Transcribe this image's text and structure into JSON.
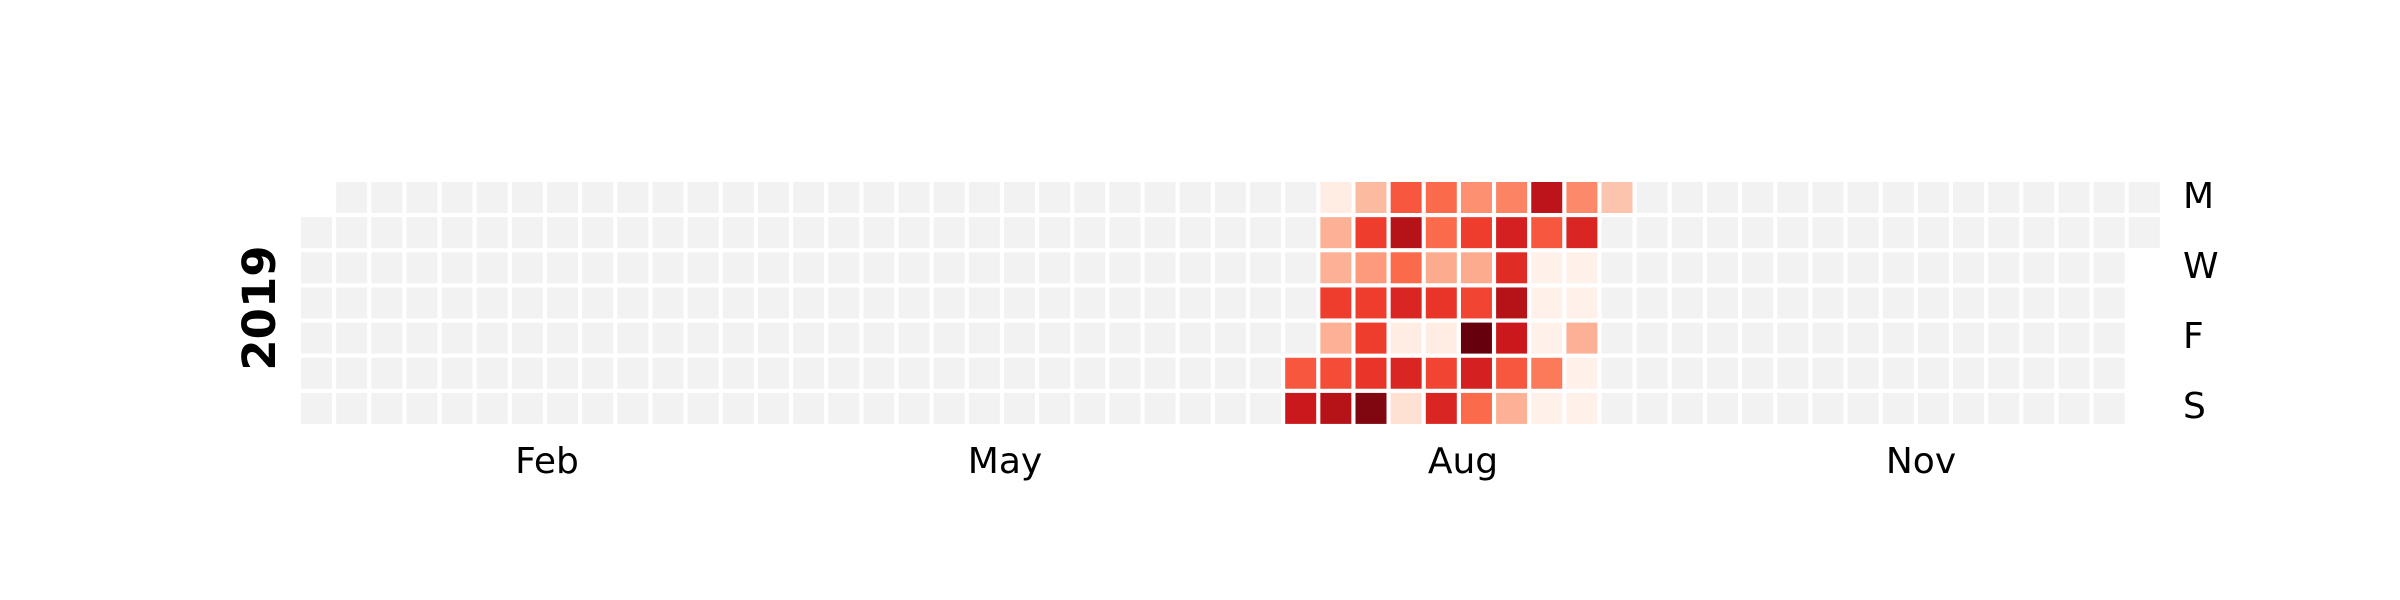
{
  "chart_data": {
    "type": "heatmap",
    "year": "2019",
    "x_ticks": [
      "Feb",
      "May",
      "Aug",
      "Nov"
    ],
    "y_ticks": [
      "M",
      "W",
      "F",
      "S"
    ],
    "empty_color": "#f2f2f2",
    "colormap": "Reds",
    "colormap_stops": [
      "#fff5f0",
      "#fee0d2",
      "#fcbba1",
      "#fc9272",
      "#fb6a4a",
      "#ef3b2c",
      "#cb181d",
      "#a50f15",
      "#67000d"
    ],
    "value_range": [
      0,
      1
    ],
    "active_weeks": [
      {
        "week": 28,
        "values": [
          null,
          null,
          null,
          null,
          null,
          0.55,
          0.75
        ]
      },
      {
        "week": 29,
        "values": [
          0.05,
          0.28,
          0.28,
          0.62,
          0.28,
          0.58,
          0.82
        ]
      },
      {
        "week": 30,
        "values": [
          0.25,
          0.62,
          0.35,
          0.62,
          0.62,
          0.65,
          0.95
        ]
      },
      {
        "week": 31,
        "values": [
          0.55,
          0.82,
          0.5,
          0.7,
          0.05,
          0.7,
          0.12
        ]
      },
      {
        "week": 32,
        "values": [
          0.5,
          0.5,
          0.3,
          0.65,
          0.05,
          0.6,
          0.7
        ]
      },
      {
        "week": 33,
        "values": [
          0.38,
          0.62,
          0.3,
          0.6,
          1.0,
          0.72,
          0.5
        ]
      },
      {
        "week": 34,
        "values": [
          0.42,
          0.72,
          0.68,
          0.82,
          0.75,
          0.55,
          0.28
        ]
      },
      {
        "week": 35,
        "values": [
          0.8,
          0.55,
          0.03,
          0.03,
          0.03,
          0.45,
          0.03
        ]
      },
      {
        "week": 36,
        "values": [
          0.4,
          0.7,
          0.03,
          0.03,
          0.28,
          0.03,
          0.03
        ]
      },
      {
        "week": 37,
        "values": [
          0.22,
          null,
          null,
          null,
          null,
          null,
          null
        ]
      }
    ]
  }
}
